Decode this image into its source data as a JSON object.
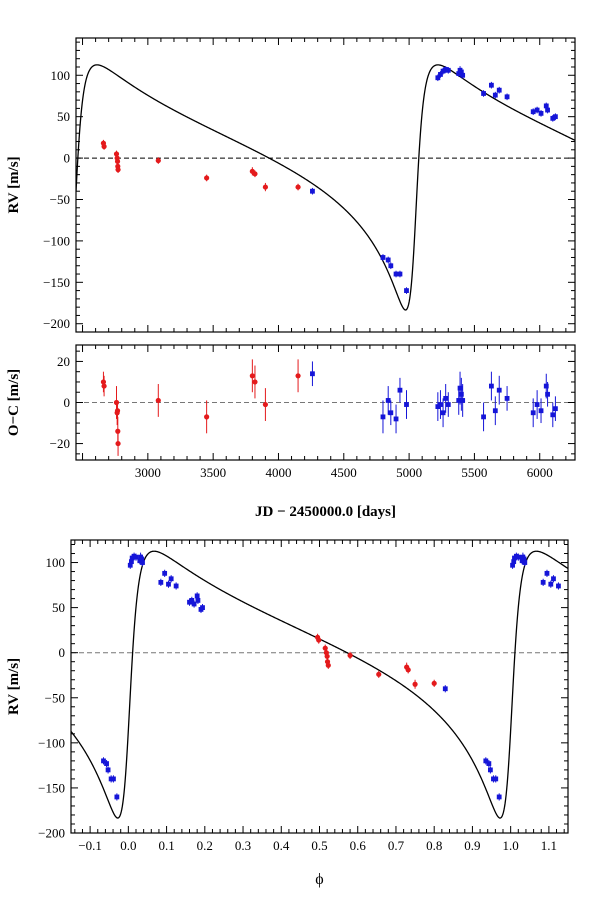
{
  "chart_data": [
    {
      "type": "scatter",
      "id": "rv_time",
      "xlabel": "",
      "ylabel": "RV [m/s]",
      "xlim": [
        2450,
        6270
      ],
      "ylim": [
        -210,
        145
      ],
      "yticks": [
        100,
        50,
        0,
        -50,
        -100,
        -150,
        -200
      ],
      "zero_line": "dashed",
      "series": [
        {
          "name": "red",
          "color": "#e41a1c",
          "points": [
            [
              2660,
              18,
              4
            ],
            [
              2665,
              14,
              4
            ],
            [
              2760,
              5,
              4
            ],
            [
              2765,
              0,
              4
            ],
            [
              2768,
              -4,
              4
            ],
            [
              2770,
              -10,
              4
            ],
            [
              2772,
              -14,
              4
            ],
            [
              3080,
              -3,
              4
            ],
            [
              3450,
              -24,
              4
            ],
            [
              3800,
              -16,
              5
            ],
            [
              3820,
              -19,
              4
            ],
            [
              3900,
              -35,
              5
            ],
            [
              4150,
              -35,
              4
            ]
          ]
        },
        {
          "name": "blue",
          "color": "#1515d8",
          "points": [
            [
              4260,
              -40,
              4
            ],
            [
              4800,
              -120,
              4
            ],
            [
              4840,
              -123,
              4
            ],
            [
              4860,
              -130,
              4
            ],
            [
              4900,
              -140,
              4
            ],
            [
              4930,
              -140,
              4
            ],
            [
              4980,
              -160,
              4
            ],
            [
              5220,
              97,
              4
            ],
            [
              5240,
              101,
              4
            ],
            [
              5260,
              105,
              4
            ],
            [
              5280,
              107,
              4
            ],
            [
              5300,
              106,
              4
            ],
            [
              5380,
              102,
              4
            ],
            [
              5390,
              106,
              5
            ],
            [
              5400,
              104,
              5
            ],
            [
              5410,
              100,
              4
            ],
            [
              5570,
              78,
              4
            ],
            [
              5630,
              88,
              4
            ],
            [
              5660,
              76,
              4
            ],
            [
              5690,
              82,
              4
            ],
            [
              5750,
              74,
              4
            ],
            [
              5950,
              56,
              4
            ],
            [
              5980,
              58,
              4
            ],
            [
              6010,
              54,
              4
            ],
            [
              6050,
              63,
              4
            ],
            [
              6060,
              58,
              4
            ],
            [
              6100,
              48,
              4
            ],
            [
              6120,
              50,
              4
            ]
          ]
        }
      ],
      "model_curve": "keplerian"
    },
    {
      "type": "scatter",
      "id": "oc_time",
      "xlabel": "JD − 2450000.0 [days]",
      "ylabel": "O−C [m/s]",
      "xlim": [
        2450,
        6270
      ],
      "ylim": [
        -28,
        28
      ],
      "xticks": [
        3000,
        3500,
        4000,
        4500,
        5000,
        5500,
        6000
      ],
      "yticks": [
        20,
        0,
        -20
      ],
      "zero_line": "dashed",
      "series": [
        {
          "name": "red",
          "color": "#e41a1c",
          "points": [
            [
              2660,
              10,
              5
            ],
            [
              2665,
              8,
              5
            ],
            [
              2760,
              0,
              8
            ],
            [
              2765,
              -5,
              6
            ],
            [
              2768,
              -4,
              5
            ],
            [
              2770,
              -14,
              7
            ],
            [
              2772,
              -20,
              6
            ],
            [
              3080,
              1,
              8
            ],
            [
              3450,
              -7,
              8
            ],
            [
              3800,
              13,
              8
            ],
            [
              3820,
              10,
              8
            ],
            [
              3900,
              -1,
              8
            ],
            [
              4150,
              13,
              8
            ]
          ]
        },
        {
          "name": "blue",
          "color": "#1515d8",
          "points": [
            [
              4260,
              14,
              6
            ],
            [
              4800,
              -7,
              8
            ],
            [
              4840,
              1,
              7
            ],
            [
              4860,
              -5,
              6
            ],
            [
              4900,
              -8,
              7
            ],
            [
              4930,
              6,
              6
            ],
            [
              4980,
              -1,
              7
            ],
            [
              5220,
              -2,
              7
            ],
            [
              5240,
              -1,
              7
            ],
            [
              5260,
              -5,
              7
            ],
            [
              5280,
              2,
              7
            ],
            [
              5300,
              -1,
              6
            ],
            [
              5380,
              1,
              7
            ],
            [
              5390,
              7,
              8
            ],
            [
              5400,
              4,
              8
            ],
            [
              5410,
              1,
              8
            ],
            [
              5570,
              -7,
              7
            ],
            [
              5630,
              8,
              7
            ],
            [
              5660,
              -4,
              7
            ],
            [
              5690,
              6,
              7
            ],
            [
              5750,
              2,
              6
            ],
            [
              5950,
              -5,
              7
            ],
            [
              5980,
              -1,
              7
            ],
            [
              6010,
              -4,
              6
            ],
            [
              6050,
              8,
              6
            ],
            [
              6060,
              4,
              6
            ],
            [
              6100,
              -6,
              6
            ],
            [
              6120,
              -3,
              6
            ]
          ]
        }
      ]
    },
    {
      "type": "scatter",
      "id": "rv_phase",
      "xlabel": "ϕ",
      "ylabel": "RV [m/s]",
      "xlim": [
        -0.15,
        1.15
      ],
      "ylim": [
        -200,
        125
      ],
      "xticks": [
        -0.1,
        0,
        0.1,
        0.2,
        0.3,
        0.4,
        0.5,
        0.6,
        0.7,
        0.8,
        0.9,
        1.0,
        1.1
      ],
      "xtick_labels": [
        "−0.1",
        "0.0",
        "0.1",
        "0.2",
        "0.3",
        "0.4",
        "0.5",
        "0.6",
        "0.7",
        "0.8",
        "0.9",
        "1.0",
        "1.1"
      ],
      "yticks": [
        100,
        50,
        0,
        -50,
        -100,
        -150,
        -200
      ],
      "zero_line": "dashed",
      "series": [
        {
          "name": "red",
          "color": "#e41a1c",
          "points": [
            [
              0.495,
              17,
              4
            ],
            [
              0.498,
              14,
              4
            ],
            [
              0.515,
              5,
              4
            ],
            [
              0.518,
              0,
              4
            ],
            [
              0.52,
              -4,
              4
            ],
            [
              0.521,
              -10,
              4
            ],
            [
              0.523,
              -14,
              4
            ],
            [
              0.58,
              -3,
              4
            ],
            [
              0.655,
              -24,
              4
            ],
            [
              0.728,
              -16,
              5
            ],
            [
              0.732,
              -19,
              4
            ],
            [
              0.75,
              -35,
              5
            ],
            [
              0.8,
              -34,
              4
            ]
          ]
        },
        {
          "name": "blue",
          "color": "#1515d8",
          "points": [
            [
              0.829,
              -40,
              4
            ],
            [
              0.935,
              -120,
              4
            ],
            [
              0.943,
              -123,
              4
            ],
            [
              0.947,
              -130,
              4
            ],
            [
              0.955,
              -140,
              4
            ],
            [
              0.961,
              -140,
              4
            ],
            [
              0.97,
              -160,
              4
            ],
            [
              1.005,
              97,
              4
            ],
            [
              1.008,
              101,
              4
            ],
            [
              1.01,
              105,
              4
            ],
            [
              1.015,
              107,
              4
            ],
            [
              1.02,
              106,
              4
            ],
            [
              1.03,
              102,
              4
            ],
            [
              1.032,
              106,
              5
            ],
            [
              1.035,
              104,
              5
            ],
            [
              1.037,
              100,
              4
            ],
            [
              1.085,
              78,
              4
            ],
            [
              1.095,
              88,
              4
            ],
            [
              1.105,
              76,
              4
            ],
            [
              1.112,
              82,
              4
            ],
            [
              1.125,
              74,
              4
            ],
            [
              0.16,
              56,
              4
            ],
            [
              0.166,
              58,
              4
            ],
            [
              0.172,
              54,
              4
            ],
            [
              0.18,
              63,
              4
            ],
            [
              0.182,
              58,
              4
            ],
            [
              0.19,
              48,
              4
            ],
            [
              0.194,
              50,
              4
            ],
            [
              -0.065,
              -120,
              4
            ],
            [
              -0.057,
              -123,
              4
            ],
            [
              -0.053,
              -130,
              4
            ],
            [
              -0.045,
              -140,
              4
            ],
            [
              -0.039,
              -140,
              4
            ],
            [
              -0.03,
              -160,
              4
            ],
            [
              0.005,
              97,
              4
            ],
            [
              0.008,
              101,
              4
            ],
            [
              0.01,
              105,
              4
            ],
            [
              0.015,
              107,
              4
            ],
            [
              0.02,
              106,
              4
            ],
            [
              0.03,
              102,
              4
            ],
            [
              0.032,
              106,
              5
            ],
            [
              0.035,
              104,
              5
            ],
            [
              0.037,
              100,
              4
            ],
            [
              0.085,
              78,
              4
            ],
            [
              0.095,
              88,
              4
            ],
            [
              0.105,
              76,
              4
            ],
            [
              0.112,
              82,
              4
            ],
            [
              0.125,
              74,
              4
            ]
          ]
        }
      ],
      "model_curve": "keplerian"
    }
  ]
}
